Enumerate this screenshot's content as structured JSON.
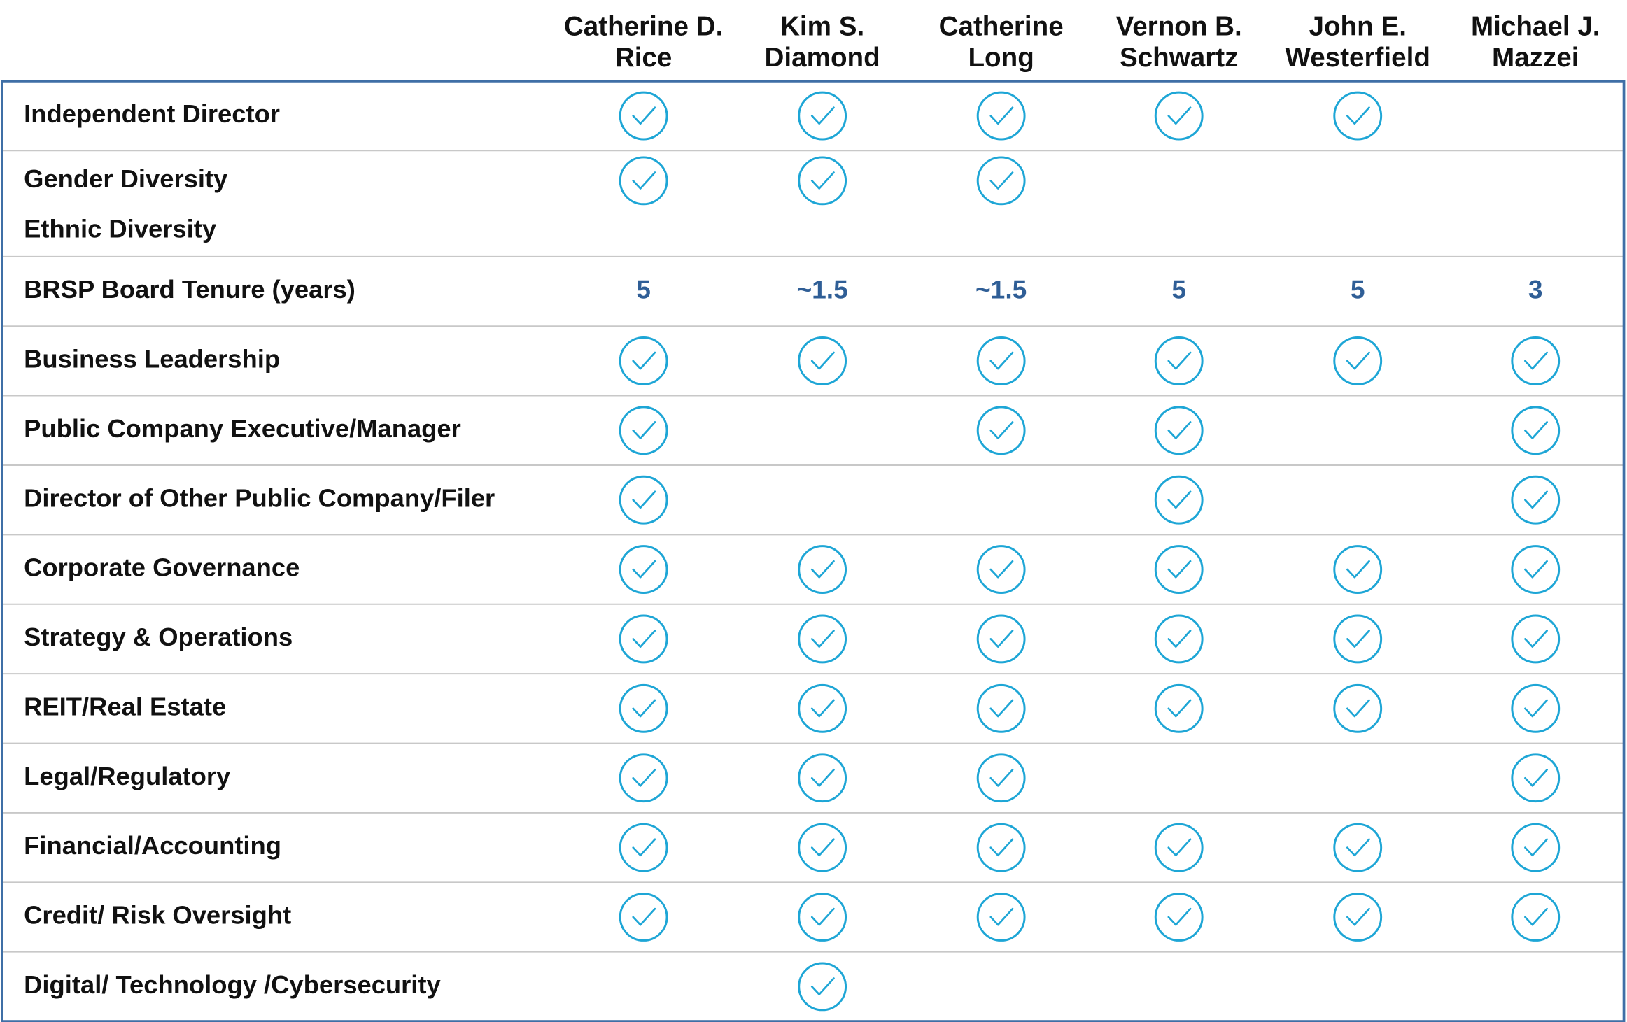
{
  "table": {
    "columns": [
      {
        "lines": [
          "Catherine D.",
          "Rice"
        ]
      },
      {
        "lines": [
          "Kim S.",
          "Diamond"
        ]
      },
      {
        "lines": [
          "Catherine",
          "Long"
        ]
      },
      {
        "lines": [
          "Vernon B.",
          "Schwartz"
        ]
      },
      {
        "lines": [
          "John E.",
          "Westerfield"
        ]
      },
      {
        "lines": [
          "Michael J.",
          "Mazzei"
        ]
      }
    ],
    "bands": [
      {
        "items": [
          {
            "label": "Independent Director",
            "cells": [
              true,
              true,
              true,
              true,
              true,
              false
            ]
          }
        ]
      },
      {
        "items": [
          {
            "label": "Gender Diversity",
            "cells": [
              true,
              true,
              true,
              false,
              false,
              false
            ]
          },
          {
            "label": "Ethnic Diversity",
            "cells": [
              false,
              false,
              false,
              false,
              false,
              false
            ]
          }
        ]
      },
      {
        "items": [
          {
            "label": "BRSP Board Tenure (years)",
            "cells": [
              "5",
              "~1.5",
              "~1.5",
              "5",
              "5",
              "3"
            ]
          }
        ]
      },
      {
        "items": [
          {
            "label": "Business Leadership",
            "cells": [
              true,
              true,
              true,
              true,
              true,
              true
            ]
          }
        ]
      },
      {
        "items": [
          {
            "label": "Public Company Executive/Manager",
            "cells": [
              true,
              false,
              true,
              true,
              false,
              true
            ]
          }
        ]
      },
      {
        "items": [
          {
            "label": "Director of Other Public Company/Filer",
            "cells": [
              true,
              false,
              false,
              true,
              false,
              true
            ]
          }
        ]
      },
      {
        "items": [
          {
            "label": "Corporate Governance",
            "cells": [
              true,
              true,
              true,
              true,
              true,
              true
            ]
          }
        ]
      },
      {
        "items": [
          {
            "label": "Strategy & Operations",
            "cells": [
              true,
              true,
              true,
              true,
              true,
              true
            ]
          }
        ]
      },
      {
        "items": [
          {
            "label": "REIT/Real Estate",
            "cells": [
              true,
              true,
              true,
              true,
              true,
              true
            ]
          }
        ]
      },
      {
        "items": [
          {
            "label": "Legal/Regulatory",
            "cells": [
              true,
              true,
              true,
              false,
              false,
              true
            ]
          }
        ]
      },
      {
        "items": [
          {
            "label": "Financial/Accounting",
            "cells": [
              true,
              true,
              true,
              true,
              true,
              true
            ]
          }
        ]
      },
      {
        "items": [
          {
            "label": "Credit/ Risk Oversight",
            "cells": [
              true,
              true,
              true,
              true,
              true,
              true
            ]
          }
        ]
      },
      {
        "items": [
          {
            "label": "Digital/ Technology /Cybersecurity",
            "cells": [
              false,
              true,
              false,
              false,
              false,
              false
            ]
          }
        ]
      }
    ]
  }
}
